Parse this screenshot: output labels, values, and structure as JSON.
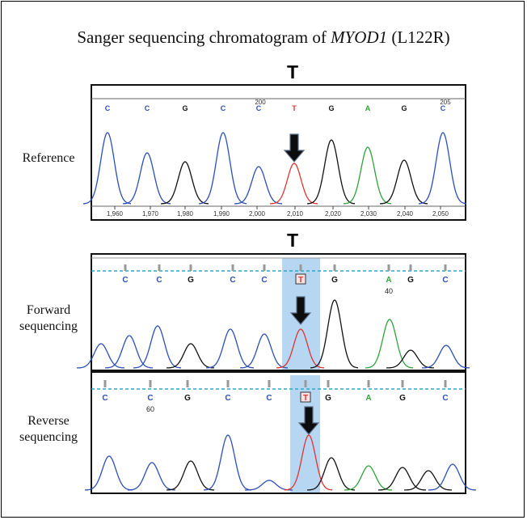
{
  "figure": {
    "title_prefix": "Sanger sequencing chromatogram of ",
    "gene": "MYOD1",
    "title_suffix": " (L122R)",
    "highlight_base": "T",
    "arrow_color": "#0d0d0d",
    "highlight_color": "#8fc0ea"
  },
  "reference": {
    "label": "Reference",
    "bases": [
      "C",
      "C",
      "G",
      "C",
      "C",
      "T",
      "G",
      "A",
      "G",
      "C"
    ],
    "position_labels": [
      "200",
      "205"
    ],
    "axis_ticks": [
      "1,960",
      "1,970",
      "1,980",
      "1,990",
      "2,000",
      "2,010",
      "2,020",
      "2,030",
      "2,040",
      "2,050"
    ]
  },
  "forward": {
    "label_line1": "Forward",
    "label_line2": "sequencing",
    "bases": [
      "C",
      "C",
      "G",
      "C",
      "C",
      "T",
      "G",
      "A",
      "G",
      "C"
    ],
    "index_label": "40"
  },
  "reverse": {
    "label_line1": "Reverse",
    "label_line2": "sequencing",
    "bases": [
      "C",
      "C",
      "G",
      "C",
      "C",
      "T",
      "G",
      "A",
      "G",
      "C"
    ],
    "index_label": "60"
  },
  "base_colors": {
    "C": "#2b4fb8",
    "G": "#111111",
    "A": "#2fa33a",
    "T": "#e03333"
  }
}
